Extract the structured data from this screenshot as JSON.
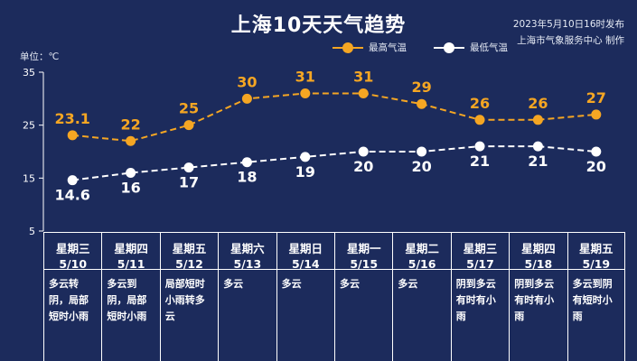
{
  "title": "上海10天天气趋势",
  "publish": {
    "line1": "2023年5月10日16时发布",
    "line2": "上海市气象服务中心 制作"
  },
  "unit_label": "单位：℃",
  "colors": {
    "background": "#1c2b5c",
    "high": "#f5a623",
    "low": "#ffffff"
  },
  "chart_data": {
    "type": "line",
    "categories": [
      "5/10",
      "5/11",
      "5/12",
      "5/13",
      "5/14",
      "5/15",
      "5/16",
      "5/17",
      "5/18",
      "5/19"
    ],
    "ylabel": "单位：℃",
    "ylim": [
      5,
      35
    ],
    "yticks": [
      5,
      15,
      25,
      35
    ],
    "grid": false,
    "legend": "top",
    "series": [
      {
        "name": "最高气温",
        "color": "#f5a623",
        "values": [
          23.1,
          22,
          25,
          30,
          31,
          31,
          29,
          26,
          26,
          27
        ],
        "labels": [
          "23.1",
          "22",
          "25",
          "30",
          "31",
          "31",
          "29",
          "26",
          "26",
          "27"
        ]
      },
      {
        "name": "最低气温",
        "color": "#ffffff",
        "values": [
          14.6,
          16,
          17,
          18,
          19,
          20,
          20,
          21,
          21,
          20
        ],
        "labels": [
          "14.6",
          "16",
          "17",
          "18",
          "19",
          "20",
          "20",
          "21",
          "21",
          "20"
        ]
      }
    ]
  },
  "days": [
    {
      "weekday": "星期三",
      "date": "5/10",
      "weather": "多云转阴，局部短时小雨"
    },
    {
      "weekday": "星期四",
      "date": "5/11",
      "weather": "多云到阴，局部短时小雨"
    },
    {
      "weekday": "星期五",
      "date": "5/12",
      "weather": "局部短时小雨转多云"
    },
    {
      "weekday": "星期六",
      "date": "5/13",
      "weather": "多云"
    },
    {
      "weekday": "星期日",
      "date": "5/14",
      "weather": "多云"
    },
    {
      "weekday": "星期一",
      "date": "5/15",
      "weather": "多云"
    },
    {
      "weekday": "星期二",
      "date": "5/16",
      "weather": "多云"
    },
    {
      "weekday": "星期三",
      "date": "5/17",
      "weather": "阴到多云有时有小雨"
    },
    {
      "weekday": "星期四",
      "date": "5/18",
      "weather": "阴到多云有时有小雨"
    },
    {
      "weekday": "星期五",
      "date": "5/19",
      "weather": "多云到阴有短时小雨"
    }
  ]
}
